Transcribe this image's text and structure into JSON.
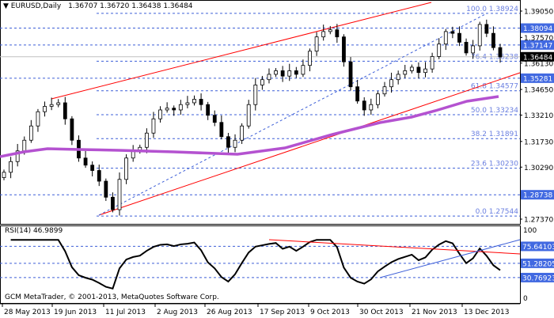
{
  "header": {
    "symbol_timeframe": "EURUSD,Daily",
    "ohlc": "1.36707 1.36720 1.36438 1.36484"
  },
  "rsi": {
    "label": "RSI(14) 46.9899",
    "levels": [
      "75.64103",
      "51.28205",
      "30.76923"
    ],
    "scale": [
      "100",
      "0"
    ]
  },
  "footer": {
    "copyright": "GCM MetaTrader, © 2001-2013, MetaQuotes Software Corp."
  },
  "colors": {
    "candle": "#000000",
    "channel": "#ff0000",
    "fibo": "#3d5fd8",
    "ma": "#b452d0",
    "price_box": "#4169e1",
    "current_box": "#000000"
  },
  "chart_data": {
    "type": "candlestick",
    "ylim": [
      1.2737,
      1.3905
    ],
    "price_ticks": [
      "1.39050",
      "1.37570",
      "1.36130",
      "1.34650",
      "1.33210",
      "1.31730",
      "1.30290",
      "1.27370"
    ],
    "price_tick_values": [
      1.3905,
      1.3757,
      1.3613,
      1.3465,
      1.3321,
      1.3173,
      1.3029,
      1.2737
    ],
    "level_boxes": [
      {
        "label": "1.38094",
        "value": 1.38094
      },
      {
        "label": "1.37147",
        "value": 1.37147
      },
      {
        "label": "1.35281",
        "value": 1.35281
      },
      {
        "label": "1.28738",
        "value": 1.28738
      }
    ],
    "current_price": {
      "label": "1.36484",
      "value": 1.36484
    },
    "fibonacci": [
      {
        "label": "100.0 1.38924",
        "value": 1.38924
      },
      {
        "label": "76.4 1.36238",
        "value": 1.36238
      },
      {
        "label": "61.8 1.34577",
        "value": 1.34577
      },
      {
        "label": "50.0 1.33234",
        "value": 1.33234
      },
      {
        "label": "38.2 1.31891",
        "value": 1.31891
      },
      {
        "label": "23.6 1.30230",
        "value": 1.3023
      },
      {
        "label": "0.0 1.27544",
        "value": 1.27544
      }
    ],
    "x_labels": [
      "28 May 2013",
      "19 Jun 2013",
      "11 Jul 2013",
      "2 Aug 2013",
      "26 Aug 2013",
      "17 Sep 2013",
      "9 Oct 2013",
      "30 Oct 2013",
      "21 Nov 2013",
      "13 Dec 2013"
    ],
    "closes": [
      1.3,
      1.306,
      1.312,
      1.318,
      1.326,
      1.334,
      1.337,
      1.338,
      1.339,
      1.33,
      1.318,
      1.308,
      1.304,
      1.301,
      1.295,
      1.286,
      1.279,
      1.296,
      1.308,
      1.312,
      1.314,
      1.322,
      1.33,
      1.335,
      1.336,
      1.335,
      1.338,
      1.339,
      1.341,
      1.338,
      1.332,
      1.328,
      1.32,
      1.314,
      1.318,
      1.326,
      1.338,
      1.349,
      1.352,
      1.355,
      1.357,
      1.354,
      1.357,
      1.355,
      1.36,
      1.368,
      1.376,
      1.379,
      1.38,
      1.376,
      1.362,
      1.348,
      1.34,
      1.335,
      1.338,
      1.344,
      1.348,
      1.352,
      1.355,
      1.357,
      1.359,
      1.356,
      1.358,
      1.365,
      1.372,
      1.379,
      1.378,
      1.373,
      1.367,
      1.371,
      1.383,
      1.378,
      1.37,
      1.3648
    ]
  }
}
